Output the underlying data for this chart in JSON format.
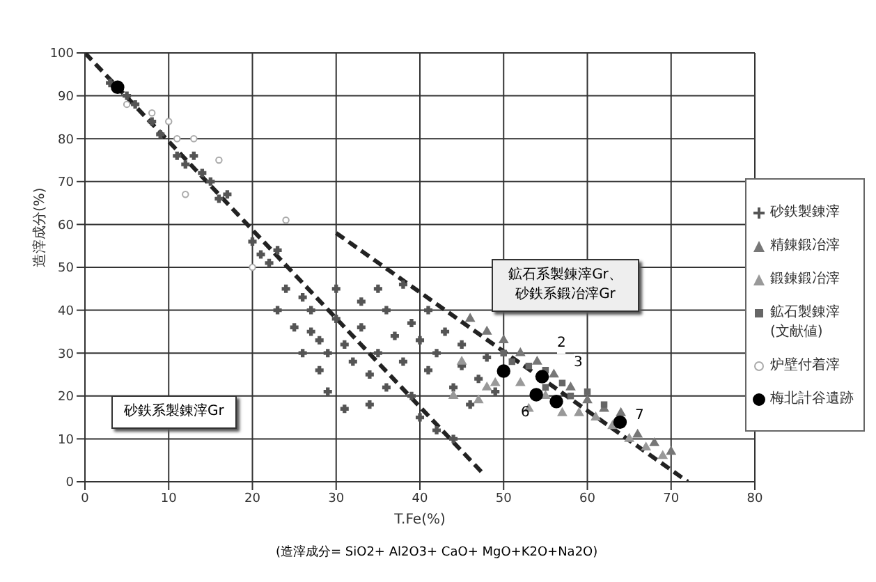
{
  "chart_data": {
    "type": "scatter",
    "xlabel": "T.Fe(%)",
    "ylabel": "造滓成分(%)",
    "xlim": [
      0,
      80
    ],
    "ylim": [
      0,
      100
    ],
    "xticks": [
      0,
      10,
      20,
      30,
      40,
      50,
      60,
      70,
      80
    ],
    "yticks": [
      0,
      10,
      20,
      30,
      40,
      50,
      60,
      70,
      80,
      90,
      100
    ],
    "grid": true,
    "legend": "right",
    "annotations": [
      "砂鉄系製錬滓Gr",
      "鉱石系製錬滓Gr、砂鉄系鍛冶滓Gr",
      "(造滓成分= SiO2+ Al2O3+ CaO+ MgO+K2O+Na2O)",
      "2",
      "3",
      "6",
      "7"
    ],
    "series": [
      {
        "name": "砂鉄製錬滓",
        "marker": "cross",
        "color": "#555555",
        "x": [
          3,
          5,
          6,
          8,
          9,
          11,
          12,
          13,
          14,
          15,
          16,
          17,
          20,
          21,
          22,
          23,
          24,
          26,
          25,
          27,
          28,
          29,
          30,
          31,
          32,
          33,
          34,
          35,
          36,
          37,
          38,
          39,
          40,
          41,
          42,
          43,
          44,
          45,
          46,
          47,
          30,
          33,
          36,
          38,
          28,
          31,
          34,
          40,
          42,
          44,
          26,
          29,
          35,
          39,
          41,
          45,
          48,
          49,
          23,
          27
        ],
        "values": [
          93,
          90,
          88,
          84,
          81,
          76,
          74,
          76,
          72,
          70,
          66,
          67,
          56,
          53,
          51,
          54,
          45,
          43,
          36,
          35,
          33,
          30,
          38,
          32,
          28,
          36,
          25,
          30,
          22,
          34,
          28,
          20,
          33,
          26,
          30,
          35,
          22,
          27,
          18,
          24,
          45,
          42,
          40,
          46,
          26,
          17,
          18,
          15,
          12,
          10,
          30,
          21,
          45,
          37,
          40,
          32,
          29,
          21,
          40,
          40
        ]
      },
      {
        "name": "精錬鍛冶滓",
        "marker": "triangle",
        "color": "#777777",
        "x": [
          46,
          48,
          50,
          52,
          54,
          56,
          58,
          60,
          62,
          64,
          66,
          68,
          70
        ],
        "values": [
          38,
          35,
          33,
          30,
          28,
          25,
          22,
          19,
          17,
          16,
          11,
          9,
          7
        ]
      },
      {
        "name": "鍛錬鍛冶滓",
        "marker": "triangle",
        "color": "#999999",
        "x": [
          45,
          48,
          49,
          52,
          55,
          57,
          59,
          61,
          63,
          65,
          67,
          69,
          47,
          53,
          44
        ],
        "values": [
          28,
          22,
          23,
          23,
          20,
          16,
          16,
          15,
          13,
          10,
          8,
          6,
          19,
          17,
          20
        ]
      },
      {
        "name": "鉱石製錬滓(文献値)",
        "marker": "square",
        "color": "#666666",
        "x": [
          50,
          53,
          55,
          57,
          58,
          60,
          62,
          55,
          51
        ],
        "values": [
          30,
          27,
          26,
          23,
          20,
          21,
          18,
          22,
          28
        ]
      },
      {
        "name": "炉壁付着滓",
        "marker": "circle",
        "color": "#aaaaaa",
        "x": [
          5,
          8,
          10,
          11,
          13,
          16,
          12,
          24,
          20
        ],
        "values": [
          88,
          86,
          84,
          80,
          80,
          75,
          67,
          61,
          50
        ]
      },
      {
        "name": "梅北計谷遺跡",
        "marker": "circle",
        "color": "#000000",
        "x": [
          3.9,
          50,
          54.6,
          53.9,
          56.3,
          63.9
        ],
        "values": [
          92,
          25.8,
          24.5,
          20.3,
          18.7,
          13.9
        ]
      },
      {
        "type": "line",
        "line_style": "dashed",
        "color": "#222222",
        "x": [
          0,
          47.5
        ],
        "values": [
          100,
          2
        ]
      },
      {
        "type": "line",
        "line_style": "dashed",
        "color": "#222222",
        "x": [
          30,
          72
        ],
        "values": [
          58,
          0
        ]
      }
    ]
  }
}
